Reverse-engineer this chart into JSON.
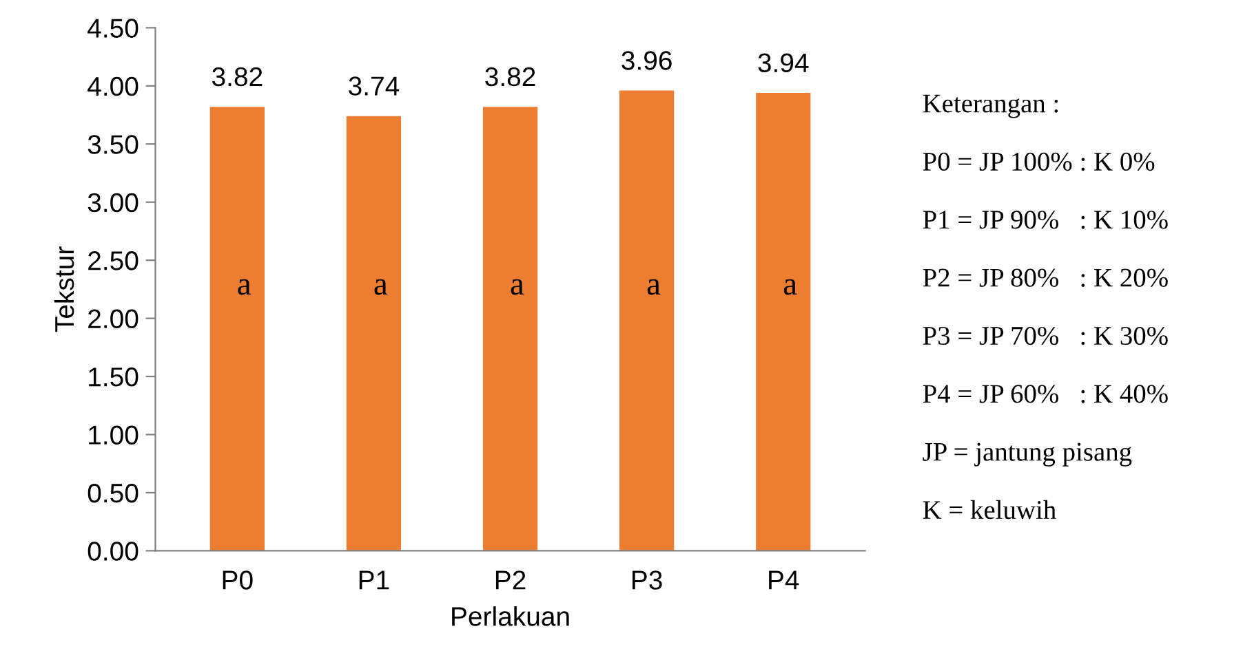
{
  "chart_data": {
    "type": "bar",
    "xlabel": "Perlakuan",
    "ylabel": "Tekstur",
    "categories": [
      "P0",
      "P1",
      "P2",
      "P3",
      "P4"
    ],
    "values": [
      3.82,
      3.74,
      3.82,
      3.96,
      3.94
    ],
    "value_labels": [
      "3.82",
      "3.74",
      "3.82",
      "3.96",
      "3.94"
    ],
    "color": "#ed7d31",
    "ylim": [
      0,
      4.5
    ],
    "yticks": [
      {
        "value": 0,
        "label": "0.00"
      },
      {
        "value": 0.5,
        "label": "0.50"
      },
      {
        "value": 1,
        "label": "1.00"
      },
      {
        "value": 1.5,
        "label": "1.50"
      },
      {
        "value": 2,
        "label": "2.00"
      },
      {
        "value": 2.5,
        "label": "2.50"
      },
      {
        "value": 3,
        "label": "3.00"
      },
      {
        "value": 3.5,
        "label": "3.50"
      },
      {
        "value": 4,
        "label": "4.00"
      },
      {
        "value": 4.5,
        "label": "4.50"
      }
    ],
    "grid": false,
    "legend": false,
    "annotations": [
      "a",
      "a",
      "a",
      "a",
      "a",
      "Keterangan :",
      "P0 = JP 100% : K 0%",
      "P1 = JP 90%   : K 10%",
      "P2 = JP 80%   : K 20%",
      "P3 = JP 70%   : K 30%",
      "P4 = JP 60%   : K 40%",
      "JP = jantung pisang",
      "K = keluwih"
    ]
  }
}
